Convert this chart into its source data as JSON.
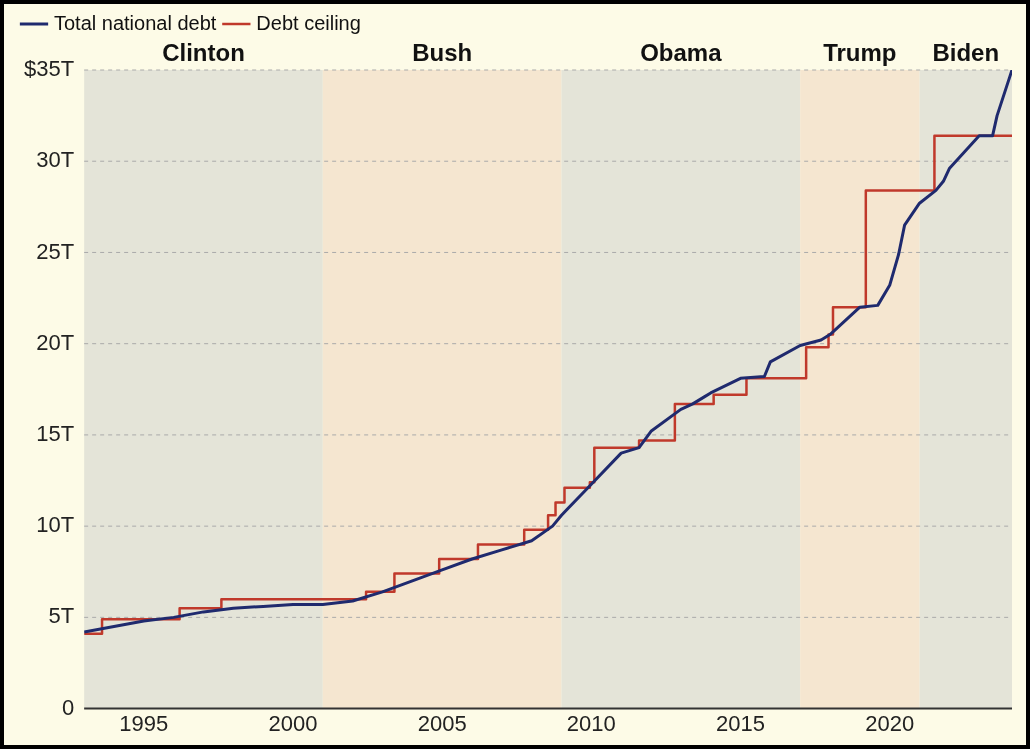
{
  "chart_data": {
    "type": "line",
    "legend": "top left",
    "grid": "y",
    "line_style": "solid",
    "marker": "none",
    "xlim": [
      1993,
      2024.1
    ],
    "xticks": [
      1995,
      2000,
      2005,
      2010,
      2015,
      2020
    ],
    "ylim": [
      0,
      35
    ],
    "yticks": [
      {
        "value": 0,
        "label": "0"
      },
      {
        "value": 5,
        "label": "5T"
      },
      {
        "value": 10,
        "label": "10T"
      },
      {
        "value": 15,
        "label": "15T"
      },
      {
        "value": 20,
        "label": "20T"
      },
      {
        "value": 25,
        "label": "25T"
      },
      {
        "value": 30,
        "label": "30T"
      },
      {
        "value": 35,
        "label": "$35T"
      }
    ],
    "bands": [
      {
        "axis": "x",
        "from": 1993,
        "to": 2001,
        "label": "Clinton",
        "color": "#e4e4d8"
      },
      {
        "axis": "x",
        "from": 2001,
        "to": 2009,
        "label": "Bush",
        "color": "#f5e6d0"
      },
      {
        "axis": "x",
        "from": 2009,
        "to": 2017,
        "label": "Obama",
        "color": "#e4e4d8"
      },
      {
        "axis": "x",
        "from": 2017,
        "to": 2021,
        "label": "Trump",
        "color": "#f5e6d0"
      },
      {
        "axis": "x",
        "from": 2021,
        "to": 2024.1,
        "label": "Biden",
        "color": "#e4e4d8"
      }
    ],
    "series": [
      {
        "name": "Total national debt",
        "type": "line",
        "color": "#1f2a6e",
        "x": [
          1993,
          1994,
          1995,
          1996,
          1997,
          1998,
          1999,
          2000,
          2001,
          2002,
          2003,
          2004,
          2005,
          2006,
          2007,
          2008,
          2008.7,
          2009,
          2010,
          2011,
          2011.6,
          2012,
          2013,
          2013.4,
          2013.8,
          2014,
          2015,
          2015.8,
          2016,
          2017,
          2017.7,
          2018,
          2019,
          2019.6,
          2020,
          2020.3,
          2020.5,
          2021,
          2021.55,
          2021.8,
          2022,
          2023,
          2023.45,
          2023.6,
          2024,
          2024.1
        ],
        "values": [
          4.2,
          4.5,
          4.8,
          5.0,
          5.3,
          5.5,
          5.6,
          5.7,
          5.7,
          5.9,
          6.4,
          7.0,
          7.6,
          8.2,
          8.7,
          9.2,
          10.0,
          10.6,
          12.3,
          14.0,
          14.3,
          15.2,
          16.4,
          16.7,
          17.1,
          17.3,
          18.1,
          18.2,
          19.0,
          19.9,
          20.2,
          20.5,
          22.0,
          22.1,
          23.2,
          24.9,
          26.5,
          27.7,
          28.4,
          28.9,
          29.6,
          31.4,
          31.4,
          32.5,
          34.5,
          35.0
        ]
      },
      {
        "name": "Debt ceiling",
        "type": "step",
        "color": "#c0392b",
        "x": [
          1993,
          1993.6,
          1996.2,
          1997.6,
          2002.45,
          2003.4,
          2004.9,
          2006.2,
          2007.75,
          2008.55,
          2008.8,
          2009.1,
          2009.95,
          2010.1,
          2011.6,
          2012.8,
          2014.1,
          2015.2,
          2017.2,
          2017.95,
          2018.1,
          2019.2,
          2021.5,
          2024.1
        ],
        "values": [
          4.1,
          4.9,
          5.5,
          6.0,
          6.4,
          7.4,
          8.2,
          9.0,
          9.8,
          10.6,
          11.3,
          12.1,
          12.4,
          14.3,
          14.7,
          16.7,
          17.2,
          18.1,
          19.8,
          20.5,
          22.0,
          28.4,
          31.4,
          31.4
        ]
      }
    ]
  }
}
